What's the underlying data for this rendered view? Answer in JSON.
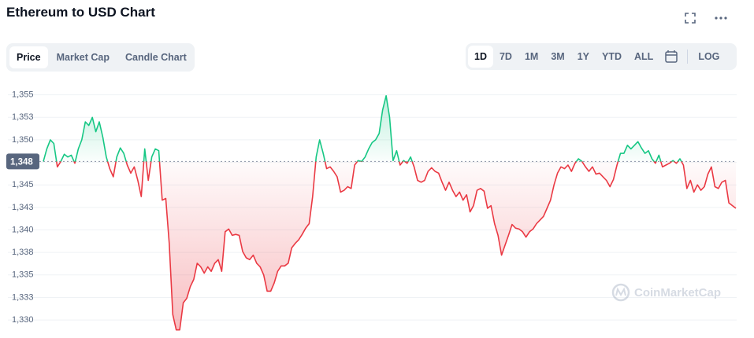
{
  "chart_data": {
    "type": "line",
    "title": "Ethereum to USD Chart",
    "values": [
      1347.6,
      1349.0,
      1350.0,
      1349.6,
      1347.0,
      1347.6,
      1348.4,
      1348.1,
      1348.3,
      1347.4,
      1349.0,
      1350.0,
      1352.0,
      1351.6,
      1352.5,
      1350.9,
      1352.0,
      1350.3,
      1348.1,
      1346.8,
      1345.9,
      1348.1,
      1349.1,
      1348.5,
      1347.2,
      1346.3,
      1347.0,
      1345.5,
      1343.7,
      1349.0,
      1345.5,
      1348.1,
      1349.0,
      1348.8,
      1343.3,
      1343.5,
      1338.5,
      1330.6,
      1328.9,
      1328.9,
      1331.9,
      1332.4,
      1333.7,
      1334.5,
      1336.3,
      1335.9,
      1335.2,
      1335.9,
      1335.4,
      1336.3,
      1336.7,
      1335.4,
      1339.8,
      1340.1,
      1339.4,
      1339.5,
      1339.4,
      1337.6,
      1336.9,
      1336.7,
      1337.2,
      1336.3,
      1335.9,
      1335.0,
      1333.2,
      1333.2,
      1334.1,
      1335.4,
      1336.0,
      1336.0,
      1336.3,
      1338.0,
      1338.5,
      1338.9,
      1339.5,
      1340.2,
      1340.7,
      1343.7,
      1348.1,
      1350.0,
      1348.5,
      1346.8,
      1347.0,
      1346.5,
      1345.9,
      1344.2,
      1344.4,
      1344.8,
      1344.6,
      1347.2,
      1347.7,
      1347.6,
      1348.1,
      1349.0,
      1349.7,
      1350.0,
      1350.7,
      1353.3,
      1354.9,
      1352.5,
      1347.7,
      1348.8,
      1347.2,
      1347.7,
      1347.4,
      1348.1,
      1347.0,
      1345.5,
      1345.3,
      1345.5,
      1346.5,
      1346.9,
      1346.5,
      1346.3,
      1345.3,
      1344.4,
      1345.3,
      1344.4,
      1343.7,
      1344.2,
      1343.3,
      1343.9,
      1342.0,
      1342.7,
      1344.4,
      1344.6,
      1344.3,
      1342.4,
      1342.7,
      1340.7,
      1339.4,
      1337.2,
      1338.3,
      1339.4,
      1340.6,
      1340.2,
      1340.1,
      1339.8,
      1339.2,
      1339.8,
      1340.1,
      1340.7,
      1341.1,
      1341.5,
      1342.4,
      1343.3,
      1345.0,
      1346.3,
      1347.0,
      1346.8,
      1347.2,
      1346.5,
      1347.4,
      1347.9,
      1347.6,
      1347.0,
      1346.5,
      1347.0,
      1346.2,
      1346.3,
      1345.9,
      1345.5,
      1344.8,
      1345.6,
      1347.2,
      1348.5,
      1348.5,
      1349.4,
      1349.0,
      1349.4,
      1349.8,
      1349.1,
      1348.5,
      1348.8,
      1347.9,
      1347.4,
      1348.3,
      1347.0,
      1347.2,
      1347.4,
      1347.7,
      1347.4,
      1347.9,
      1347.2,
      1344.6,
      1345.5,
      1344.2,
      1345.0,
      1344.4,
      1344.8,
      1346.2,
      1347.0,
      1344.8,
      1344.6,
      1345.3,
      1345.5,
      1343.0,
      1342.7,
      1342.4
    ],
    "up_color": "#16c784",
    "down_color": "#ea3943",
    "baseline": {
      "value": 1347.6,
      "label": "1,348"
    },
    "ylim": [
      1328,
      1356.8
    ],
    "yticks": [
      {
        "value": 1330,
        "label": "1,330"
      },
      {
        "value": 1332.5,
        "label": "1,333"
      },
      {
        "value": 1335,
        "label": "1,335"
      },
      {
        "value": 1337.5,
        "label": "1,338"
      },
      {
        "value": 1340,
        "label": "1,340"
      },
      {
        "value": 1342.5,
        "label": "1,343"
      },
      {
        "value": 1345,
        "label": "1,345"
      },
      {
        "value": 1347.5,
        "label": "1,348"
      },
      {
        "value": 1350,
        "label": "1,350"
      },
      {
        "value": 1352.5,
        "label": "1,353"
      },
      {
        "value": 1355,
        "label": "1,355"
      }
    ],
    "grid": true
  },
  "controls": {
    "chart_tabs": [
      "Price",
      "Market Cap",
      "Candle Chart"
    ],
    "time_ranges": [
      "1D",
      "7D",
      "1M",
      "3M",
      "1Y",
      "YTD",
      "ALL"
    ],
    "scale_toggle": "LOG"
  },
  "watermark": "CoinMarketCap"
}
